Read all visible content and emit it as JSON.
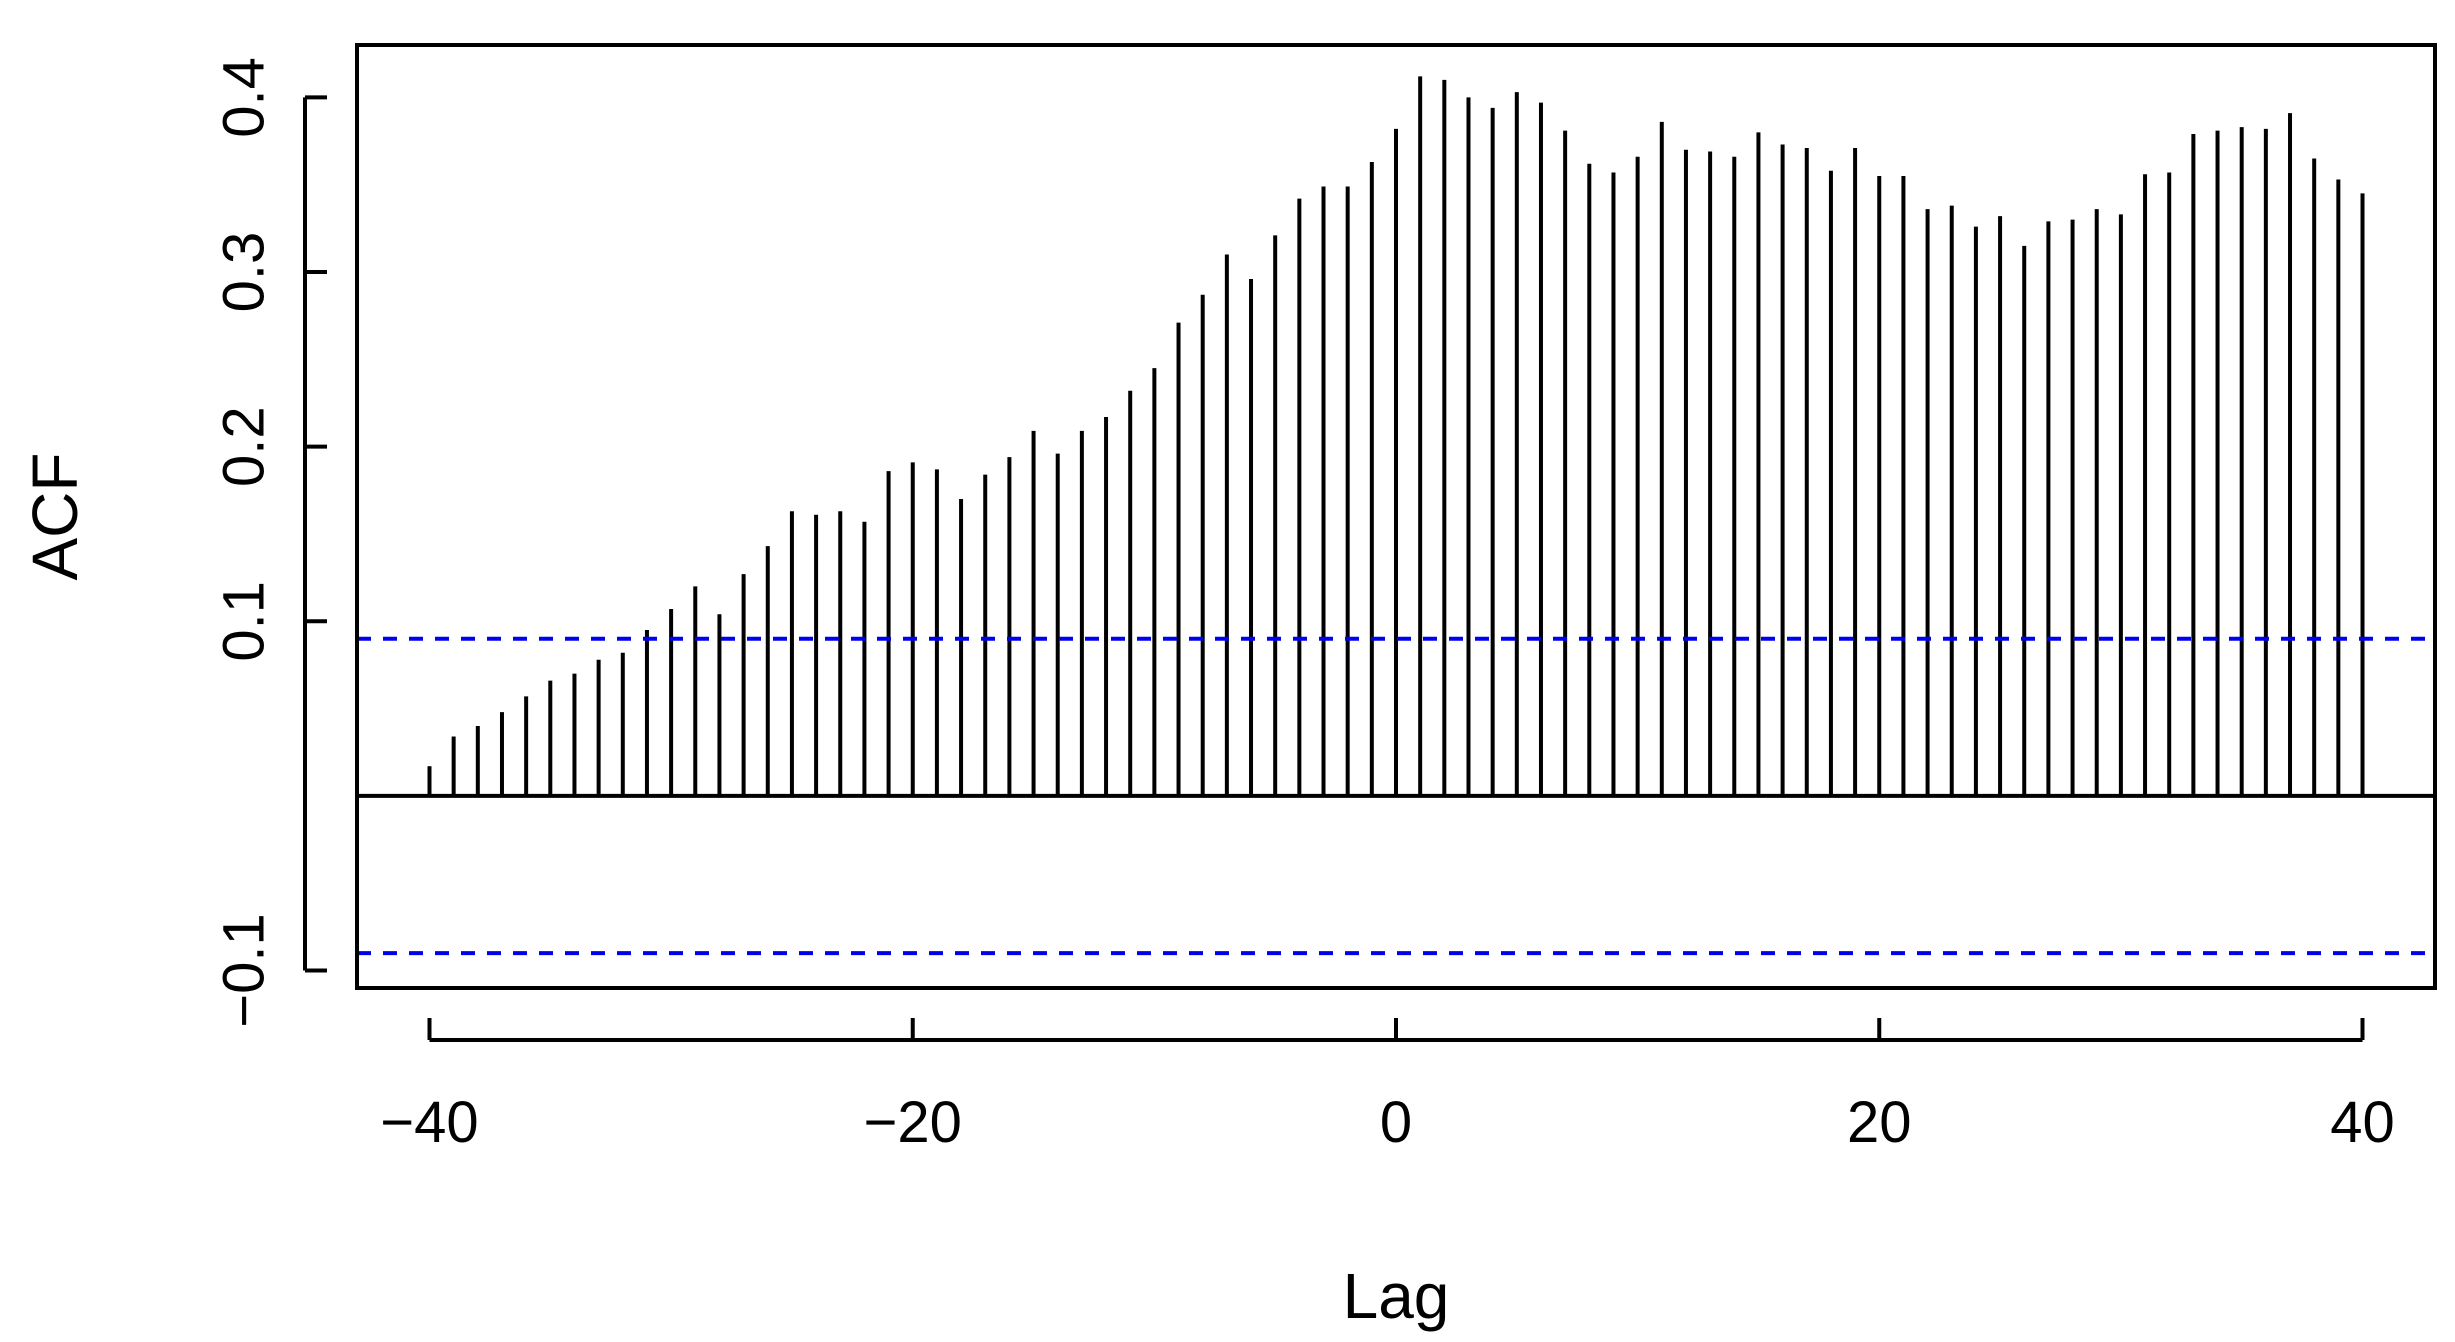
{
  "chart_data": {
    "type": "bar",
    "subtype": "acf-stem",
    "xlabel": "Lag",
    "ylabel": "ACF",
    "xlim": [
      -43,
      43
    ],
    "ylim": [
      -0.11,
      0.43
    ],
    "x_ticks": [
      -40,
      -20,
      0,
      20,
      40
    ],
    "x_tick_labels": [
      "−40",
      "−20",
      "0",
      "20",
      "40"
    ],
    "y_ticks": [
      -0.1,
      0.1,
      0.2,
      0.3,
      0.4
    ],
    "y_tick_labels": [
      "−0.1",
      "0.1",
      "0.2",
      "0.3",
      "0.4"
    ],
    "grid": false,
    "legend": "none",
    "confidence_band": 0.09,
    "colors": {
      "stems": "#000000",
      "zero_line": "#000000",
      "confidence_lines": "#0000ee",
      "frame": "#000000"
    },
    "x": [
      -40,
      -39,
      -38,
      -37,
      -36,
      -35,
      -34,
      -33,
      -32,
      -31,
      -30,
      -29,
      -28,
      -27,
      -26,
      -25,
      -24,
      -23,
      -22,
      -21,
      -20,
      -19,
      -18,
      -17,
      -16,
      -15,
      -14,
      -13,
      -12,
      -11,
      -10,
      -9,
      -8,
      -7,
      -6,
      -5,
      -4,
      -3,
      -2,
      -1,
      0,
      1,
      2,
      3,
      4,
      5,
      6,
      7,
      8,
      9,
      10,
      11,
      12,
      13,
      14,
      15,
      16,
      17,
      18,
      19,
      20,
      21,
      22,
      23,
      24,
      25,
      26,
      27,
      28,
      29,
      30,
      31,
      32,
      33,
      34,
      35,
      36,
      37,
      38,
      39,
      40
    ],
    "values": [
      0.017,
      0.034,
      0.04,
      0.048,
      0.057,
      0.066,
      0.07,
      0.078,
      0.082,
      0.095,
      0.107,
      0.12,
      0.104,
      0.127,
      0.143,
      0.163,
      0.161,
      0.163,
      0.157,
      0.186,
      0.191,
      0.187,
      0.17,
      0.184,
      0.194,
      0.209,
      0.196,
      0.209,
      0.217,
      0.232,
      0.245,
      0.271,
      0.287,
      0.31,
      0.296,
      0.321,
      0.342,
      0.349,
      0.349,
      0.363,
      0.382,
      0.412,
      0.41,
      0.4,
      0.394,
      0.403,
      0.397,
      0.381,
      0.362,
      0.357,
      0.366,
      0.386,
      0.37,
      0.369,
      0.366,
      0.38,
      0.373,
      0.371,
      0.358,
      0.371,
      0.355,
      0.355,
      0.336,
      0.338,
      0.326,
      0.332,
      0.315,
      0.329,
      0.33,
      0.336,
      0.333,
      0.356,
      0.357,
      0.379,
      0.381,
      0.383,
      0.382,
      0.391,
      0.365,
      0.353,
      0.345
    ]
  }
}
